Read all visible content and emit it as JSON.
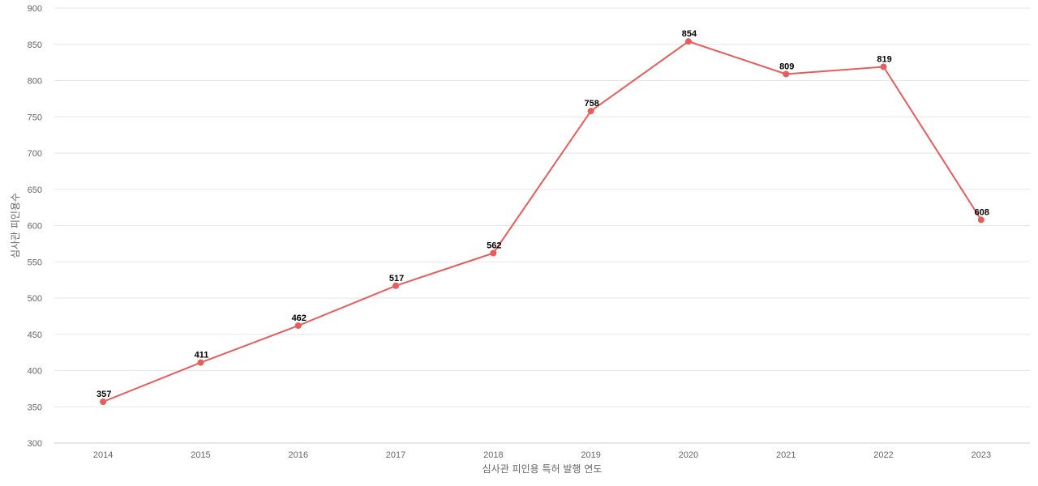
{
  "chart_data": {
    "type": "line",
    "title": "",
    "xlabel": "심사관 피인용 특허 발행 연도",
    "ylabel": "심사관 피인용수",
    "categories": [
      "2014",
      "2015",
      "2016",
      "2017",
      "2018",
      "2019",
      "2020",
      "2021",
      "2022",
      "2023"
    ],
    "series": [
      {
        "values": [
          357,
          411,
          462,
          517,
          562,
          758,
          854,
          809,
          819,
          608
        ],
        "color": "#e85c5c"
      }
    ],
    "ylim": [
      300,
      900
    ],
    "yticks": [
      300,
      350,
      400,
      450,
      500,
      550,
      600,
      650,
      700,
      750,
      800,
      850,
      900
    ],
    "grid": true,
    "data_labels": true,
    "legend": "none"
  }
}
